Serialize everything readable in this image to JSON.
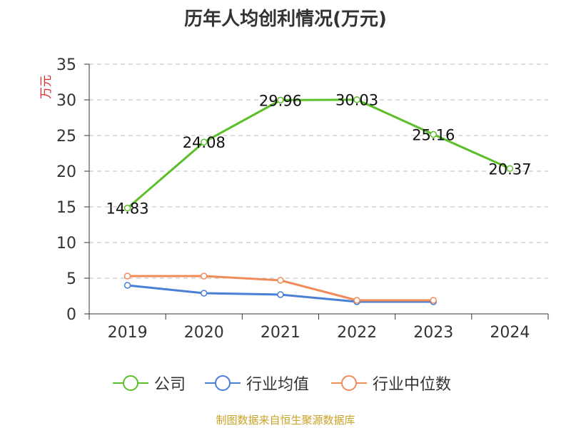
{
  "chart_data": {
    "type": "line",
    "title": "历年人均创利情况(万元)",
    "ylabel": "万元",
    "xlabel": "",
    "categories": [
      "2019",
      "2020",
      "2021",
      "2022",
      "2023",
      "2024"
    ],
    "ylim": [
      0,
      35
    ],
    "yticks": [
      0,
      5,
      10,
      15,
      20,
      25,
      30,
      35
    ],
    "grid": true,
    "legend_position": "bottom",
    "series": [
      {
        "name": "公司",
        "color": "#5cbf2a",
        "values": [
          14.83,
          24.08,
          29.96,
          30.03,
          25.16,
          20.37
        ],
        "labels": [
          "14.83",
          "24.08",
          "29.96",
          "30.03",
          "25.16",
          "20.37"
        ]
      },
      {
        "name": "行业均值",
        "color": "#4a7fd6",
        "values": [
          4.0,
          2.9,
          2.7,
          1.7,
          1.7,
          null
        ]
      },
      {
        "name": "行业中位数",
        "color": "#f08c5a",
        "values": [
          5.3,
          5.3,
          4.7,
          1.9,
          1.9,
          null
        ]
      }
    ]
  },
  "source": "制图数据来自恒生聚源数据库"
}
